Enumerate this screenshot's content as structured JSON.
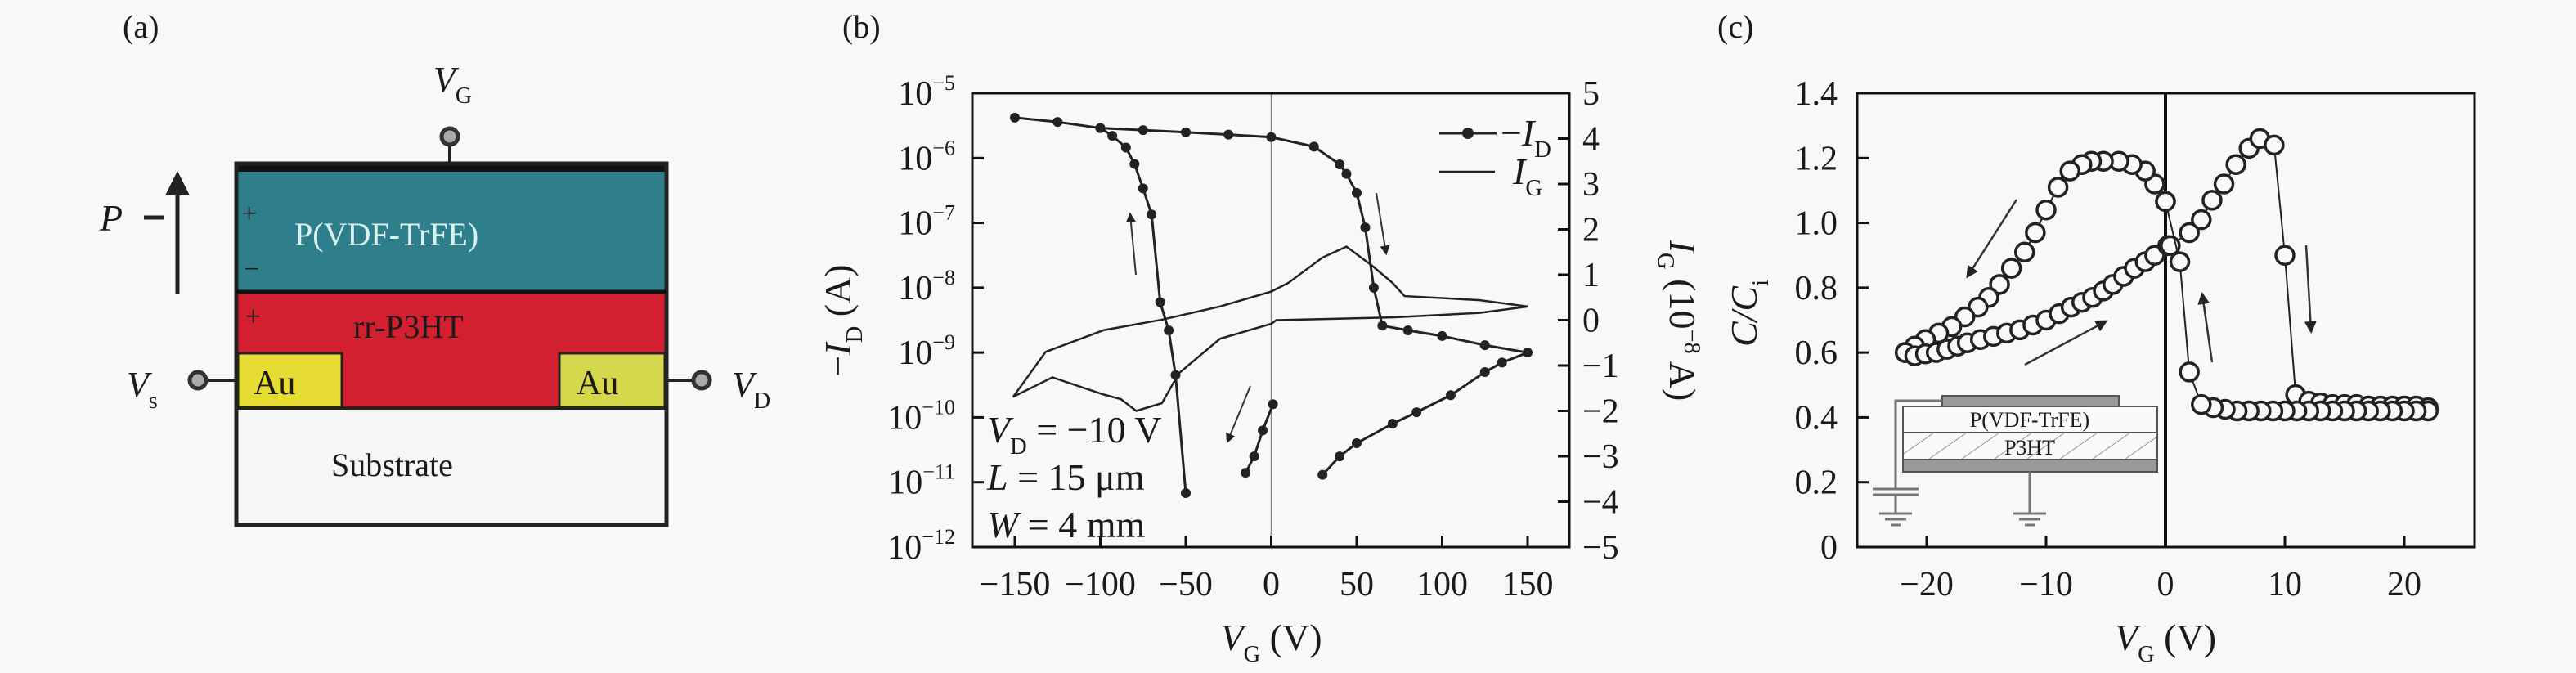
{
  "panel_labels": {
    "a": "(a)",
    "b": "(b)",
    "c": "(c)"
  },
  "device": {
    "vg": {
      "main": "V",
      "sub": "G"
    },
    "vs": {
      "main": "V",
      "sub": "s"
    },
    "vd": {
      "main": "V",
      "sub": "D"
    },
    "polarization": "P",
    "layers": {
      "ferro": "P(VDF-TrFE)",
      "semi": "rr-P3HT",
      "substrate": "Substrate",
      "au_left": "Au",
      "au_right": "Au"
    },
    "charges": {
      "plus_top": "+",
      "minus": "−",
      "plus_mid": "+"
    },
    "colors": {
      "ferro": "#2f7e8b",
      "semi": "#d22030",
      "au": "#e6dc34",
      "substrate": "#f6f6f6"
    }
  },
  "chart_data": [
    {
      "type": "line",
      "panel": "b",
      "xlabel": {
        "main": "V",
        "sub": "G",
        "rest": " (V)"
      },
      "ylabel": {
        "pre": "−",
        "main": "I",
        "sub": "D",
        "rest": " (A)"
      },
      "y2label": {
        "main": "I",
        "sub": "G",
        "rest": " (10",
        "exp": "−8",
        "end": " A)"
      },
      "xlim": [
        -175,
        175
      ],
      "xticks": [
        "−150",
        "−100",
        "−50",
        "0",
        "50",
        "100",
        "150"
      ],
      "xtick_values": [
        -150,
        -100,
        -50,
        0,
        50,
        100,
        150
      ],
      "yscale": "log",
      "ylim": [
        1e-12,
        1e-05
      ],
      "yticks": [
        {
          "base": "10",
          "exp": "−5"
        },
        {
          "base": "10",
          "exp": "−6"
        },
        {
          "base": "10",
          "exp": "−7"
        },
        {
          "base": "10",
          "exp": "−8"
        },
        {
          "base": "10",
          "exp": "−9"
        },
        {
          "base": "10",
          "exp": "−10"
        },
        {
          "base": "10",
          "exp": "−11"
        },
        {
          "base": "10",
          "exp": "−12"
        }
      ],
      "y2lim": [
        -5,
        5
      ],
      "y2ticks": [
        "5",
        "4",
        "3",
        "2",
        "1",
        "0",
        "−1",
        "−2",
        "−3",
        "−4",
        "−5"
      ],
      "legend": {
        "position": "top-right",
        "entries": [
          {
            "pre": "−",
            "main": "I",
            "sub": "D",
            "marker": "filled-circle-line"
          },
          {
            "main": "I",
            "sub": "G",
            "marker": "line"
          }
        ]
      },
      "annotations": [
        {
          "main": "V",
          "sub": "D",
          "rest": " = −10 V"
        },
        {
          "main": "L",
          "rest": " = 15 μm"
        },
        {
          "main": "W",
          "rest": " = 4 mm"
        }
      ],
      "series": [
        {
          "name": "−ID",
          "axis": "left",
          "segments": [
            [
              [
                -150,
                4.2e-06
              ],
              [
                -125,
                3.6e-06
              ],
              [
                -100,
                2.9e-06
              ],
              [
                -75,
                2.7e-06
              ],
              [
                -50,
                2.5e-06
              ],
              [
                -25,
                2.3e-06
              ],
              [
                0,
                2.1e-06
              ],
              [
                25,
                1.5e-06
              ],
              [
                40,
                8e-07
              ],
              [
                44,
                5.7e-07
              ],
              [
                50,
                2.9e-07
              ],
              [
                55,
                8.5e-08
              ],
              [
                60,
                1e-08
              ],
              [
                65,
                2.6e-09
              ],
              [
                80,
                2.2e-09
              ],
              [
                100,
                1.8e-09
              ],
              [
                125,
                1.3e-09
              ],
              [
                150,
                1e-09
              ],
              [
                135,
                7e-10
              ],
              [
                125,
                5e-10
              ],
              [
                105,
                2.2e-10
              ],
              [
                85,
                1.2e-10
              ],
              [
                71,
                8e-11
              ],
              [
                50,
                4e-11
              ],
              [
                40,
                2.5e-11
              ],
              [
                30,
                1.3e-11
              ]
            ],
            [
              [
                1,
                1.6e-10
              ],
              [
                -5,
                6.3e-11
              ],
              [
                -10,
                2.5e-11
              ],
              [
                -15,
                1.4e-11
              ]
            ],
            [
              [
                -50,
                6.8e-12
              ],
              [
                -56,
                4.5e-10
              ],
              [
                -60,
                2.2e-09
              ],
              [
                -65,
                6e-09
              ],
              [
                -70,
                1.35e-07
              ],
              [
                -75,
                3.4e-07
              ],
              [
                -80,
                8.1e-07
              ],
              [
                -85,
                1.45e-06
              ],
              [
                -93,
                2.2e-06
              ],
              [
                -100,
                2.9e-06
              ]
            ]
          ]
        },
        {
          "name": "IG",
          "axis": "right",
          "segments": [
            [
              [
                150,
                0.3
              ],
              [
                122,
                0.44
              ],
              [
                78,
                0.53
              ],
              [
                71,
                0.82
              ],
              [
                59,
                1.2
              ],
              [
                44,
                1.62
              ],
              [
                30,
                1.38
              ],
              [
                10,
                0.82
              ],
              [
                0,
                0.63
              ],
              [
                -30,
                0.3
              ],
              [
                -64,
                0.01
              ],
              [
                -98,
                -0.22
              ],
              [
                -132,
                -0.7
              ],
              [
                -151,
                -1.69
              ],
              [
                -128,
                -1.26
              ],
              [
                -98,
                -1.64
              ],
              [
                -88,
                -1.74
              ],
              [
                -79,
                -2.0
              ],
              [
                -64,
                -1.83
              ],
              [
                -54,
                -1.17
              ],
              [
                -30,
                -0.41
              ],
              [
                0,
                -0.08
              ],
              [
                3,
                0
              ],
              [
                71,
                0.06
              ],
              [
                122,
                0.16
              ],
              [
                150,
                0.3
              ]
            ]
          ]
        }
      ],
      "grid": false,
      "zero_line": true
    },
    {
      "type": "scatter",
      "panel": "c",
      "xlabel": {
        "main": "V",
        "sub": "G",
        "rest": " (V)"
      },
      "ylabel": {
        "main": "C/C",
        "sub": "i"
      },
      "xlim": [
        -26,
        26
      ],
      "xticks": [
        "−20",
        "−10",
        "0",
        "10",
        "20"
      ],
      "xtick_values": [
        -20,
        -10,
        0,
        10,
        20
      ],
      "ylim": [
        0,
        1.4
      ],
      "yticks": [
        "1.4",
        "1.2",
        "1.0",
        "0.8",
        "0.6",
        "0.4",
        "0.2",
        "0"
      ],
      "ytick_values": [
        1.4,
        1.2,
        1.0,
        0.8,
        0.6,
        0.4,
        0.2,
        0
      ],
      "series": [
        {
          "name": "",
          "marker": "open-circle",
          "segments": [
            [
              [
                0,
                1.066
              ],
              [
                -0.9,
                1.12
              ],
              [
                -1.7,
                1.16
              ],
              [
                -2.8,
                1.18
              ],
              [
                -3.9,
                1.19
              ],
              [
                -5.2,
                1.19
              ],
              [
                -6.2,
                1.19
              ],
              [
                -7,
                1.18
              ],
              [
                -8,
                1.16
              ],
              [
                -9,
                1.11
              ],
              [
                -10,
                1.04
              ],
              [
                -10.9,
                0.97
              ],
              [
                -11.8,
                0.91
              ],
              [
                -12.9,
                0.86
              ],
              [
                -13.9,
                0.81
              ],
              [
                -14.8,
                0.77
              ],
              [
                -15.7,
                0.74
              ],
              [
                -16.8,
                0.71
              ],
              [
                -17.9,
                0.68
              ],
              [
                -19,
                0.66
              ],
              [
                -20.1,
                0.64
              ],
              [
                -21,
                0.62
              ],
              [
                -21.8,
                0.6
              ]
            ],
            [
              [
                -21.8,
                0.6
              ],
              [
                -21,
                0.59
              ],
              [
                -20.1,
                0.596
              ],
              [
                -19.2,
                0.6
              ],
              [
                -18.3,
                0.61
              ],
              [
                -17.4,
                0.62
              ],
              [
                -16.6,
                0.63
              ],
              [
                -15.5,
                0.64
              ],
              [
                -14.4,
                0.65
              ],
              [
                -13.3,
                0.66
              ],
              [
                -12.2,
                0.67
              ],
              [
                -11.1,
                0.685
              ],
              [
                -10,
                0.7
              ],
              [
                -8.9,
                0.72
              ],
              [
                -7.9,
                0.74
              ],
              [
                -7,
                0.755
              ],
              [
                -6.1,
                0.77
              ],
              [
                -5.2,
                0.79
              ],
              [
                -4.4,
                0.81
              ],
              [
                -3.5,
                0.835
              ],
              [
                -2.6,
                0.86
              ],
              [
                -1.7,
                0.88
              ],
              [
                -0.9,
                0.9
              ],
              [
                0.2,
                0.93
              ],
              [
                0.4,
                0.93
              ],
              [
                2,
                0.97
              ],
              [
                3,
                1.01
              ],
              [
                3.9,
                1.07
              ],
              [
                4.9,
                1.12
              ],
              [
                5.9,
                1.18
              ],
              [
                7,
                1.23
              ],
              [
                7.9,
                1.26
              ],
              [
                9.1,
                1.24
              ],
              [
                10,
                0.9
              ],
              [
                10.9,
                0.47
              ],
              [
                12,
                0.45
              ],
              [
                13,
                0.445
              ],
              [
                14,
                0.44
              ],
              [
                15,
                0.44
              ],
              [
                16,
                0.44
              ],
              [
                17,
                0.435
              ],
              [
                18,
                0.435
              ],
              [
                19,
                0.435
              ],
              [
                20,
                0.435
              ],
              [
                21,
                0.435
              ],
              [
                22,
                0.43
              ]
            ],
            [
              [
                22,
                0.42
              ],
              [
                21,
                0.42
              ],
              [
                20,
                0.42
              ],
              [
                19,
                0.42
              ],
              [
                18,
                0.42
              ],
              [
                17,
                0.42
              ],
              [
                16,
                0.42
              ],
              [
                15,
                0.42
              ],
              [
                14,
                0.42
              ],
              [
                13,
                0.42
              ],
              [
                12,
                0.42
              ],
              [
                11,
                0.42
              ],
              [
                10,
                0.42
              ],
              [
                9,
                0.42
              ],
              [
                8,
                0.42
              ],
              [
                7,
                0.42
              ],
              [
                6,
                0.42
              ],
              [
                5,
                0.425
              ],
              [
                4,
                0.43
              ],
              [
                3,
                0.44
              ],
              [
                2,
                0.54
              ],
              [
                1.2,
                0.88
              ],
              [
                0,
                1.066
              ]
            ]
          ]
        }
      ],
      "inset": {
        "top_layer": "P(VDF-TrFE)",
        "bottom_layer": "P3HT"
      },
      "grid": false,
      "zero_line": true
    }
  ]
}
